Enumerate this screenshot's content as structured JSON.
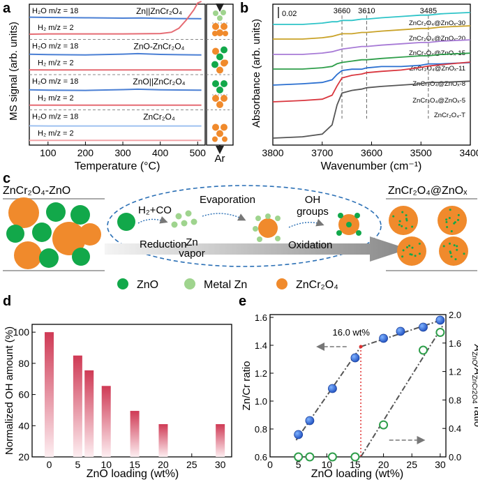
{
  "panels": {
    "a": {
      "letter": "a",
      "ylabel": "MS signal (arb. units)",
      "xlabel": "Temperature (°C)",
      "xticks": [
        100,
        200,
        300,
        400,
        500
      ],
      "xlim": [
        50,
        520
      ],
      "arrow_label": "Ar",
      "groups": [
        {
          "title": "Zn||ZnCr₂O₄",
          "h2o_label": "H₂O m/z = 18",
          "h2_label": "H₂ m/z = 2",
          "dots": "zn_top_sep"
        },
        {
          "title": "ZnO-ZnCr₂O₄",
          "h2o_label": "H₂O m/z = 18",
          "h2_label": "H₂ m/z = 2",
          "dots": "mixed"
        },
        {
          "title": "ZnO||ZnCr₂O₄",
          "h2o_label": "H₂O m/z = 18",
          "h2_label": "H₂ m/z = 2",
          "dots": "zno_top_sep"
        },
        {
          "title": "ZnCr₂O₄",
          "h2o_label": "H₂O m/z = 18",
          "h2_label": "H₂ m/z = 2",
          "dots": "zcr_only"
        }
      ]
    },
    "b": {
      "letter": "b",
      "ylabel": "Absorbance (arb. units)",
      "xlabel": "Wavenumber (cm⁻¹)",
      "xticks": [
        3800,
        3700,
        3600,
        3500,
        3400
      ],
      "xlim": [
        3800,
        3400
      ],
      "scale_bar": "0.02",
      "peak_labels": [
        3660,
        3610,
        3485
      ],
      "series": [
        {
          "name": "ZnCr₂O₄@ZnOₓ-30",
          "color": "#2ec4c8"
        },
        {
          "name": "ZnCr₂O₄@ZnOₓ-20",
          "color": "#c9a227"
        },
        {
          "name": "ZnCr₂O₄@ZnOₓ-15",
          "color": "#a77ad6"
        },
        {
          "name": "ZnCr₂O₄@ZnOₓ-11",
          "color": "#2e9e4a"
        },
        {
          "name": "ZnCr₂O₄@ZnOₓ-8",
          "color": "#2a6fd0"
        },
        {
          "name": "ZnCr₂O₄@ZnOₓ-5",
          "color": "#d9363e"
        },
        {
          "name": "ZnCr₂O₄-T",
          "color": "#555555"
        }
      ]
    },
    "c": {
      "letter": "c",
      "left_title": "ZnCr₂O₄-ZnO",
      "right_title": "ZnCr₂O₄@ZnOₓ",
      "step_h2co": "H₂+CO",
      "step_reduction": "Reduction",
      "step_zn_vapor_1": "Zn",
      "step_zn_vapor_2": "vapor",
      "step_evaporation": "Evaporation",
      "step_oh_1": "OH",
      "step_oh_2": "groups",
      "step_oxidation": "Oxidation",
      "legend": [
        "ZnO",
        "Metal Zn",
        "ZnCr₂O₄"
      ],
      "colors": {
        "zno": "#12a84a",
        "metal_zn": "#9fd48e",
        "zncr": "#f08a2c"
      }
    },
    "d": {
      "letter": "d",
      "ylabel": "Normalized OH amount (%)",
      "xlabel": "ZnO loading (wt%)",
      "xticks": [
        0,
        5,
        10,
        15,
        20,
        25,
        30
      ],
      "yticks": [
        20,
        40,
        60,
        80,
        100
      ],
      "xlim": [
        -3,
        32
      ],
      "ylim": [
        20,
        105
      ]
    },
    "e": {
      "letter": "e",
      "ylabel_left": "Zn/Cr ratio",
      "ylabel_right": "A_ZnO/A_ZnCr2O4 ratio",
      "ylabel_right_main": "A",
      "ylabel_right_sub1": "ZnO",
      "ylabel_right_mid": "/A",
      "ylabel_right_sub2": "ZnCr2O4",
      "ylabel_right_tail": " ratio",
      "xlabel": "ZnO loading (wt%)",
      "xticks": [
        0,
        5,
        10,
        15,
        20,
        25,
        30
      ],
      "yticks_left": [
        "0.6",
        "0.8",
        "1.0",
        "1.2",
        "1.4",
        "1.6"
      ],
      "yticks_right": [
        "0.0",
        "0.4",
        "0.8",
        "1.2",
        "1.6",
        "2.0"
      ],
      "annotation": "16.0 wt%"
    }
  },
  "chart_data": [
    {
      "type": "line",
      "panel": "a",
      "title": "",
      "xlabel": "Temperature (°C)",
      "ylabel": "MS signal (arb. units)",
      "xlim": [
        50,
        520
      ],
      "series": [
        {
          "name": "Zn||ZnCr2O4 H2O",
          "x": [
            50,
            100,
            200,
            300,
            350,
            400,
            500,
            510
          ],
          "y": [
            0.3,
            0.28,
            0.25,
            0.22,
            0.24,
            0.2,
            0.18,
            0.17
          ]
        },
        {
          "name": "Zn||ZnCr2O4 H2",
          "x": [
            50,
            100,
            200,
            300,
            400,
            430,
            450,
            470,
            490,
            500,
            510
          ],
          "y": [
            0.02,
            0.03,
            0.03,
            0.03,
            0.04,
            0.08,
            0.2,
            0.45,
            0.75,
            0.95,
            1.0
          ]
        },
        {
          "name": "ZnO-ZnCr2O4 H2O",
          "x": [
            50,
            100,
            200,
            300,
            340,
            400,
            500,
            510
          ],
          "y": [
            0.15,
            0.12,
            0.1,
            0.16,
            0.2,
            0.14,
            0.1,
            0.1
          ]
        },
        {
          "name": "ZnO-ZnCr2O4 H2",
          "x": [
            50,
            100,
            200,
            300,
            400,
            510
          ],
          "y": [
            0.03,
            0.02,
            0.02,
            0.02,
            0.02,
            0.02
          ]
        },
        {
          "name": "ZnO||ZnCr2O4 H2O",
          "x": [
            50,
            100,
            200,
            300,
            340,
            400,
            500,
            510
          ],
          "y": [
            0.12,
            0.1,
            0.08,
            0.14,
            0.17,
            0.12,
            0.1,
            0.1
          ]
        },
        {
          "name": "ZnO||ZnCr2O4 H2",
          "x": [
            50,
            100,
            200,
            300,
            400,
            510
          ],
          "y": [
            0.02,
            0.02,
            0.02,
            0.02,
            0.02,
            0.02
          ]
        },
        {
          "name": "ZnCr2O4 H2O",
          "x": [
            50,
            100,
            200,
            300,
            400,
            510
          ],
          "y": [
            0.06,
            0.05,
            0.05,
            0.05,
            0.05,
            0.05
          ]
        },
        {
          "name": "ZnCr2O4 H2",
          "x": [
            50,
            100,
            200,
            300,
            400,
            510
          ],
          "y": [
            0.02,
            0.02,
            0.02,
            0.02,
            0.02,
            0.02
          ]
        }
      ]
    },
    {
      "type": "line",
      "panel": "b",
      "title": "",
      "xlabel": "Wavenumber (cm⁻¹)",
      "ylabel": "Absorbance (arb. units)",
      "xlim": [
        3800,
        3400
      ],
      "x": [
        3800,
        3740,
        3700,
        3680,
        3670,
        3660,
        3640,
        3620,
        3610,
        3580,
        3540,
        3500,
        3485,
        3460,
        3400
      ],
      "series": [
        {
          "name": "ZnCr2O4@ZnOx-30",
          "y": [
            0.0,
            0.0,
            0.001,
            0.002,
            0.002,
            0.003,
            0.003,
            0.004,
            0.004,
            0.005,
            0.006,
            0.007,
            0.007,
            0.008,
            0.009
          ]
        },
        {
          "name": "ZnCr2O4@ZnOx-20",
          "y": [
            0.0,
            0.0,
            0.001,
            0.002,
            0.003,
            0.004,
            0.004,
            0.005,
            0.005,
            0.006,
            0.007,
            0.008,
            0.008,
            0.009,
            0.01
          ]
        },
        {
          "name": "ZnCr2O4@ZnOx-15",
          "y": [
            0.0,
            0.0,
            0.001,
            0.002,
            0.003,
            0.004,
            0.005,
            0.006,
            0.006,
            0.007,
            0.008,
            0.009,
            0.009,
            0.01,
            0.011
          ]
        },
        {
          "name": "ZnCr2O4@ZnOx-11",
          "y": [
            0.0,
            0.0,
            0.001,
            0.002,
            0.004,
            0.005,
            0.006,
            0.007,
            0.007,
            0.008,
            0.009,
            0.01,
            0.01,
            0.011,
            0.012
          ]
        },
        {
          "name": "ZnCr2O4@ZnOx-8",
          "y": [
            0.0,
            0.001,
            0.002,
            0.004,
            0.008,
            0.011,
            0.012,
            0.012,
            0.013,
            0.014,
            0.014,
            0.015,
            0.016,
            0.016,
            0.017
          ]
        },
        {
          "name": "ZnCr2O4@ZnOx-5",
          "y": [
            0.0,
            0.001,
            0.002,
            0.005,
            0.012,
            0.018,
            0.02,
            0.021,
            0.022,
            0.023,
            0.024,
            0.026,
            0.027,
            0.028,
            0.03
          ]
        },
        {
          "name": "ZnCr2O4-T",
          "y": [
            0.0,
            0.001,
            0.003,
            0.01,
            0.025,
            0.034,
            0.036,
            0.037,
            0.038,
            0.039,
            0.04,
            0.041,
            0.042,
            0.042,
            0.043
          ]
        }
      ]
    },
    {
      "type": "bar",
      "panel": "d",
      "title": "",
      "xlabel": "ZnO loading (wt%)",
      "ylabel": "Normalized OH amount (%)",
      "ylim": [
        20,
        105
      ],
      "x": [
        0,
        5,
        7,
        10,
        15,
        20,
        30
      ],
      "values": [
        100,
        85,
        75.5,
        65.5,
        49.5,
        41,
        41
      ]
    },
    {
      "type": "scatter",
      "panel": "e",
      "title": "",
      "xlabel": "ZnO loading (wt%)",
      "ylabel": "Zn/Cr ratio",
      "ylabel_right": "A_ZnO/A_ZnCr2O4 ratio",
      "xlim": [
        0,
        31
      ],
      "ylim": [
        0.6,
        1.62
      ],
      "ylim_right": [
        0,
        2.0
      ],
      "series": [
        {
          "name": "Zn/Cr ratio",
          "axis": "left",
          "x": [
            5,
            7,
            11,
            15,
            20,
            23,
            27,
            30
          ],
          "y": [
            0.76,
            0.86,
            1.09,
            1.31,
            1.45,
            1.5,
            1.53,
            1.58
          ]
        },
        {
          "name": "A_ZnO/A_ZnCr2O4 ratio",
          "axis": "right",
          "x": [
            5,
            7,
            11,
            15,
            20,
            27,
            30
          ],
          "y": [
            0.0,
            0.0,
            0.0,
            0.0,
            0.45,
            1.5,
            1.75
          ]
        }
      ],
      "annotations": [
        {
          "text": "16.0 wt%",
          "x": 16.0
        }
      ]
    }
  ]
}
